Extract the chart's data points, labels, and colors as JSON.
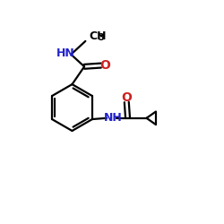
{
  "bg_color": "#ffffff",
  "bond_color": "#000000",
  "N_color": "#2222cc",
  "O_color": "#cc2222",
  "line_width": 1.6,
  "figsize": [
    2.5,
    2.5
  ],
  "dpi": 100,
  "xlim": [
    0,
    10
  ],
  "ylim": [
    0,
    10
  ]
}
